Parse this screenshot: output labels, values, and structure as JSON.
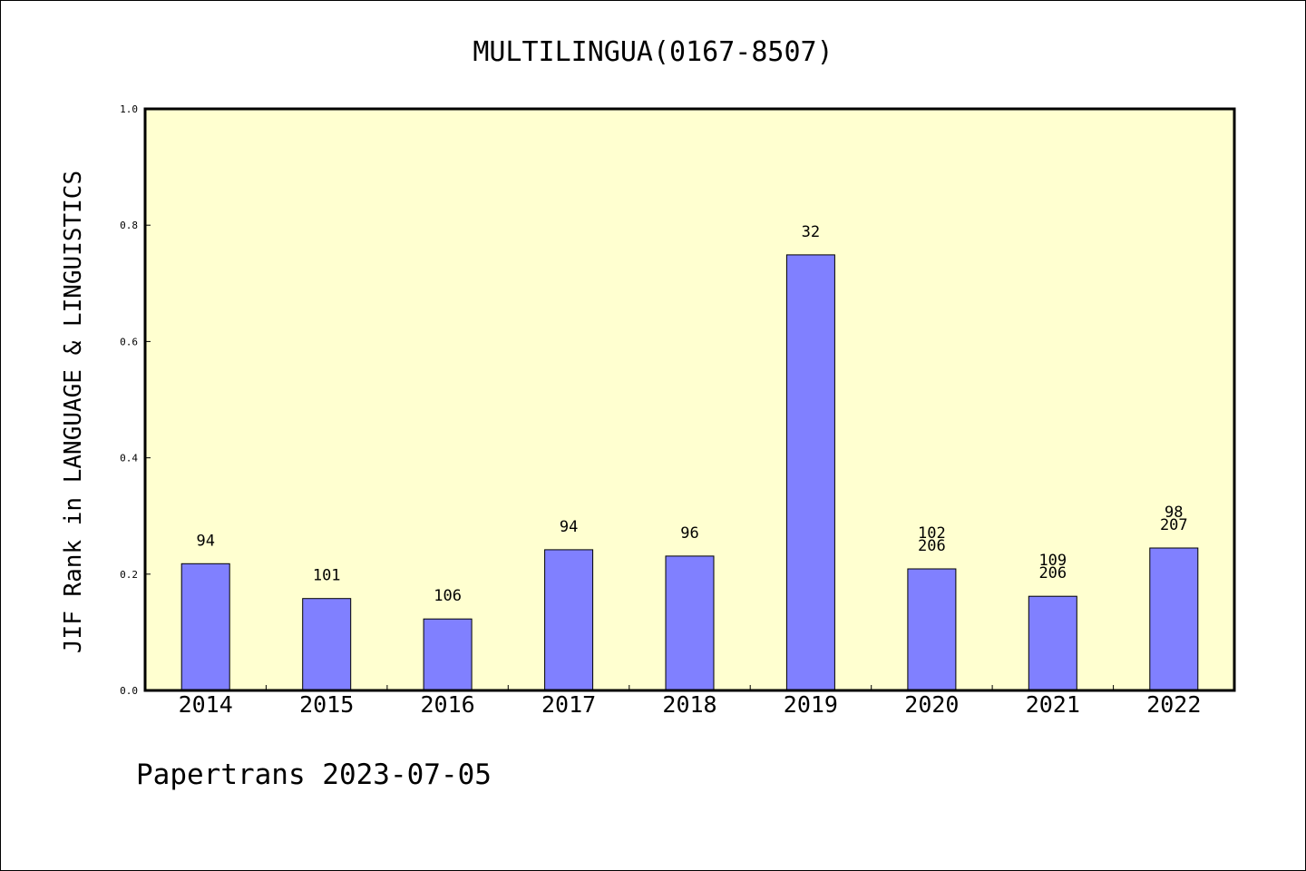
{
  "chart_data": {
    "type": "bar",
    "title": "MULTILINGUA(0167-8507)",
    "xlabel": "",
    "ylabel": "JIF Rank in LANGUAGE & LINGUISTICS",
    "ylim": [
      0,
      1.0
    ],
    "yticks": [
      "0.0",
      "0.2",
      "0.4",
      "0.6",
      "0.8",
      "1.0"
    ],
    "categories": [
      "2014",
      "2015",
      "2016",
      "2017",
      "2018",
      "2019",
      "2020",
      "2021",
      "2022"
    ],
    "values": [
      0.218,
      0.158,
      0.123,
      0.242,
      0.231,
      0.749,
      0.209,
      0.162,
      0.245
    ],
    "labels": [
      [
        "94"
      ],
      [
        "101"
      ],
      [
        "106"
      ],
      [
        "94"
      ],
      [
        "96"
      ],
      [
        "32"
      ],
      [
        "102",
        "206"
      ],
      [
        "109",
        "206"
      ],
      [
        "98",
        "207"
      ]
    ],
    "grid": false,
    "colors": {
      "plot_background": "#ffffd0",
      "bar_fill": "#8080ff",
      "bar_stroke": "#000000"
    }
  },
  "footer": {
    "text": "Papertrans 2023-07-05"
  }
}
